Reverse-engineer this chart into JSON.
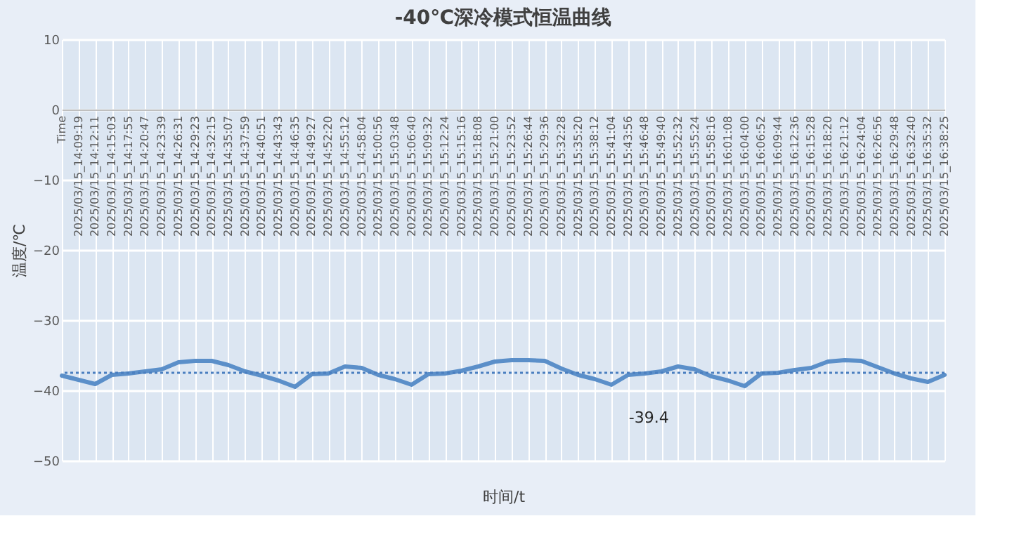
{
  "chart_data": {
    "type": "line",
    "title": "-40℃深冷模式恒温曲线",
    "xlabel": "时间/t",
    "ylabel": "温度/℃",
    "categories": [
      "Time",
      "2025/03/15_14:09:19",
      "2025/03/15_14:12:11",
      "2025/03/15_14:15:03",
      "2025/03/15_14:17:55",
      "2025/03/15_14:20:47",
      "2025/03/15_14:23:39",
      "2025/03/15_14:26:31",
      "2025/03/15_14:29:23",
      "2025/03/15_14:32:15",
      "2025/03/15_14:35:07",
      "2025/03/15_14:37:59",
      "2025/03/15_14:40:51",
      "2025/03/15_14:43:43",
      "2025/03/15_14:46:35",
      "2025/03/15_14:49:27",
      "2025/03/15_14:52:20",
      "2025/03/15_14:55:12",
      "2025/03/15_14:58:04",
      "2025/03/15_15:00:56",
      "2025/03/15_15:03:48",
      "2025/03/15_15:06:40",
      "2025/03/15_15:09:32",
      "2025/03/15_15:12:24",
      "2025/03/15_15:15:16",
      "2025/03/15_15:18:08",
      "2025/03/15_15:21:00",
      "2025/03/15_15:23:52",
      "2025/03/15_15:26:44",
      "2025/03/15_15:29:36",
      "2025/03/15_15:32:28",
      "2025/03/15_15:35:20",
      "2025/03/15_15:38:12",
      "2025/03/15_15:41:04",
      "2025/03/15_15:43:56",
      "2025/03/15_15:46:48",
      "2025/03/15_15:49:40",
      "2025/03/15_15:52:32",
      "2025/03/15_15:55:24",
      "2025/03/15_15:58:16",
      "2025/03/15_16:01:08",
      "2025/03/15_16:04:00",
      "2025/03/15_16:06:52",
      "2025/03/15_16:09:44",
      "2025/03/15_16:12:36",
      "2025/03/15_16:15:28",
      "2025/03/15_16:18:20",
      "2025/03/15_16:21:12",
      "2025/03/15_16:24:04",
      "2025/03/15_16:26:56",
      "2025/03/15_16:29:48",
      "2025/03/15_16:32:40",
      "2025/03/15_16:35:32",
      "2025/03/15_16:38:25"
    ],
    "series": [
      {
        "color": "#5b8fc9",
        "values": [
          -37.9,
          -38.5,
          -39.1,
          -37.8,
          -37.6,
          -37.3,
          -37.0,
          -36.0,
          -35.8,
          -35.8,
          -36.4,
          -37.3,
          -37.9,
          -38.6,
          -39.5,
          -37.7,
          -37.6,
          -36.6,
          -36.8,
          -37.8,
          -38.4,
          -39.2,
          -37.7,
          -37.6,
          -37.2,
          -36.6,
          -35.9,
          -35.7,
          -35.7,
          -35.8,
          -36.9,
          -37.8,
          -38.4,
          -39.2,
          -37.8,
          -37.6,
          -37.3,
          -36.6,
          -37.0,
          -38.0,
          -38.6,
          -39.4,
          -37.6,
          -37.5,
          -37.1,
          -36.8,
          -35.9,
          -35.7,
          -35.8,
          -36.7,
          -37.6,
          -38.3,
          -38.8,
          -37.8
        ]
      }
    ],
    "ref_lines": [
      {
        "axis": "y",
        "value": -37.5,
        "color": "#4a7fc0",
        "line_style": "dotted"
      }
    ],
    "annotations": [
      "-39.4"
    ],
    "ylim": [
      -50,
      10
    ],
    "yticks": [
      -50,
      -40,
      -30,
      -20,
      -10,
      0,
      10
    ],
    "grid": true
  }
}
